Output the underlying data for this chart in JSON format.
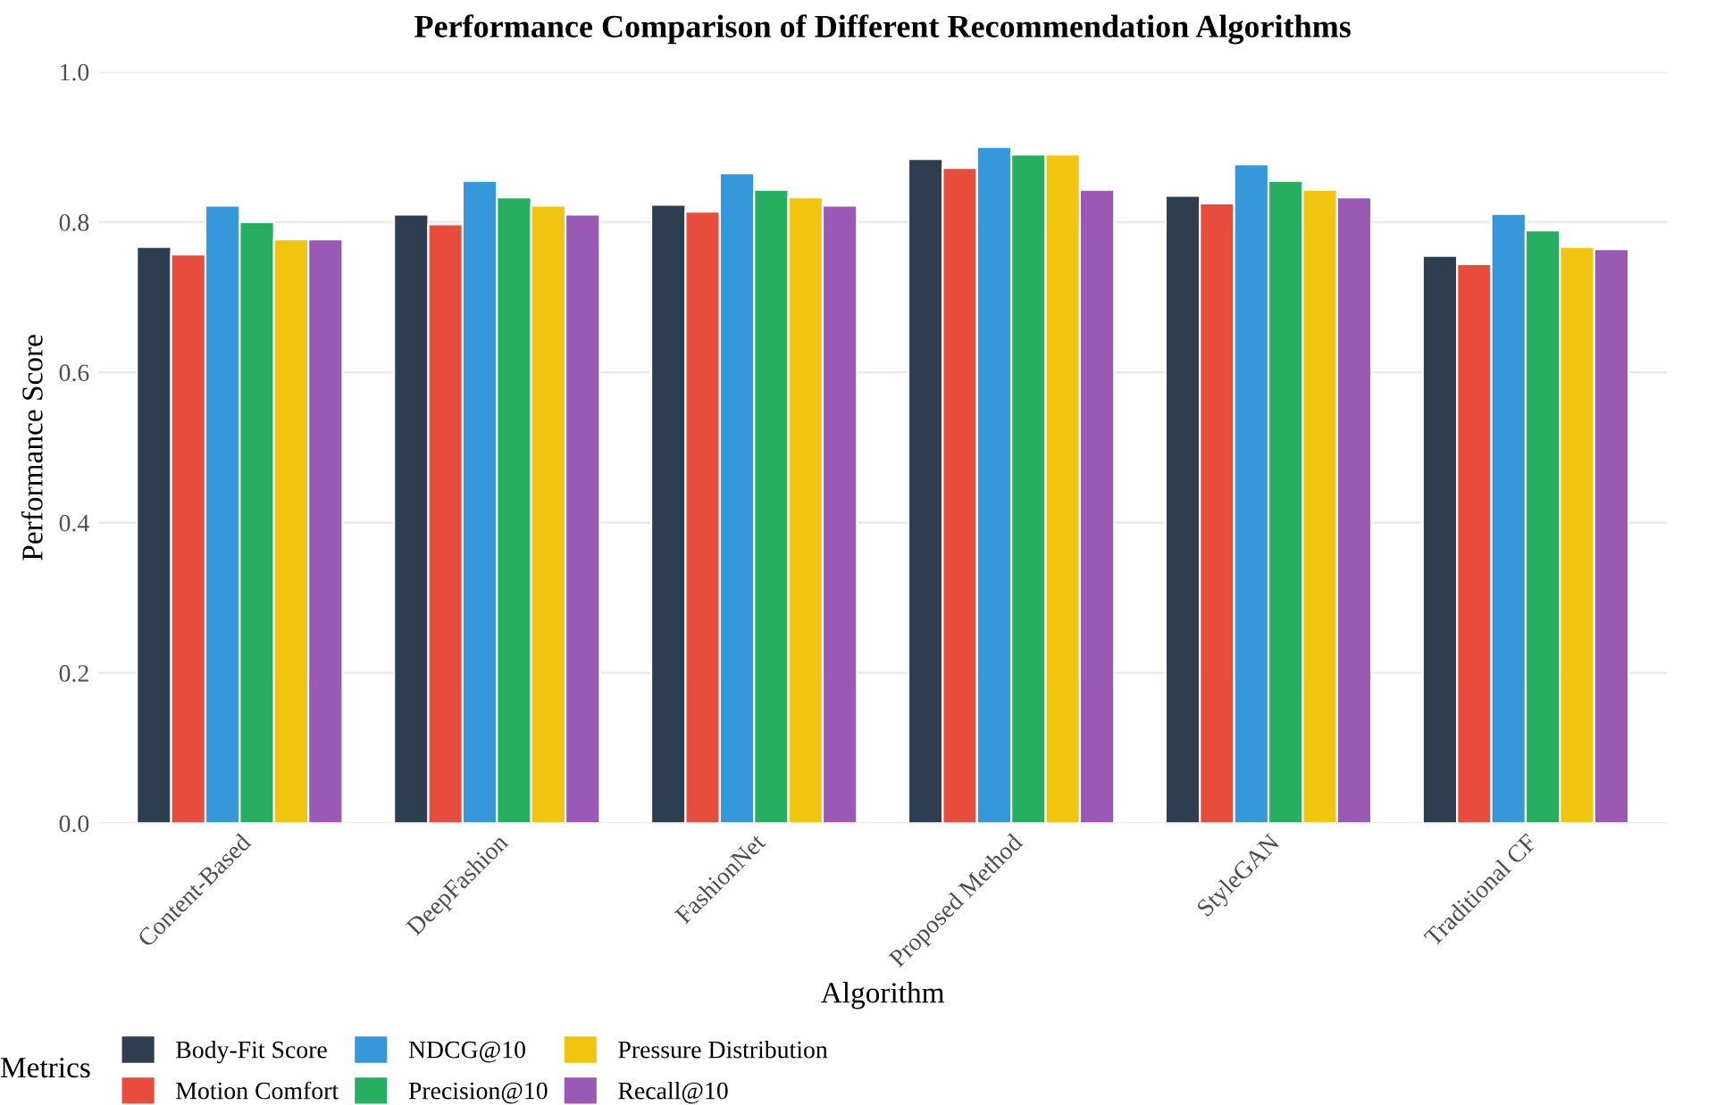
{
  "chart_data": {
    "type": "bar",
    "title": "Performance Comparison of Different Recommendation Algorithms",
    "xlabel": "Algorithm",
    "ylabel": "Performance Score",
    "legend_title": "Metrics",
    "categories": [
      "Content-Based",
      "DeepFashion",
      "FashionNet",
      "Proposed Method",
      "StyleGAN",
      "Traditional CF"
    ],
    "series": [
      {
        "name": "Body-Fit Score",
        "color": "#2c3e50",
        "values": [
          0.767,
          0.81,
          0.823,
          0.884,
          0.835,
          0.755
        ]
      },
      {
        "name": "Motion Comfort",
        "color": "#e74c3c",
        "values": [
          0.757,
          0.797,
          0.814,
          0.872,
          0.825,
          0.744
        ]
      },
      {
        "name": "NDCG@10",
        "color": "#3498db",
        "values": [
          0.822,
          0.855,
          0.865,
          0.9,
          0.877,
          0.811
        ]
      },
      {
        "name": "Precision@10",
        "color": "#27ae60",
        "values": [
          0.8,
          0.833,
          0.843,
          0.89,
          0.855,
          0.789
        ]
      },
      {
        "name": "Pressure Distribution",
        "color": "#f1c40f",
        "values": [
          0.777,
          0.822,
          0.833,
          0.89,
          0.843,
          0.767
        ]
      },
      {
        "name": "Recall@10",
        "color": "#9b59b6",
        "values": [
          0.777,
          0.81,
          0.822,
          0.843,
          0.833,
          0.764
        ]
      }
    ],
    "ylim": [
      0,
      1.0
    ],
    "yticks": [
      {
        "value": 0,
        "label": "0.0"
      },
      {
        "value": 0.2,
        "label": "0.2"
      },
      {
        "value": 0.4,
        "label": "0.4"
      },
      {
        "value": 0.6,
        "label": "0.6"
      },
      {
        "value": 0.8,
        "label": "0.8"
      },
      {
        "value": 1.0,
        "label": "1.0"
      }
    ],
    "grid": "y",
    "legend": "bottom"
  }
}
